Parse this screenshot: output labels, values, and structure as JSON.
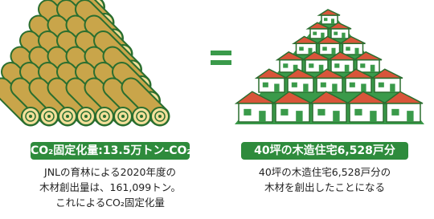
{
  "left": {
    "badge": "CO₂固定化量:13.5万トン-CO₂",
    "lines": [
      "JNLの育林による2020年度の",
      "木材創出量は、161,099トン。",
      "これによるCO₂固定化量"
    ]
  },
  "right": {
    "badge": "40坪の木造住宅6,528戸分",
    "lines": [
      "40坪の木造住宅6,528戸分の",
      "木材を創出したことになる"
    ]
  }
}
